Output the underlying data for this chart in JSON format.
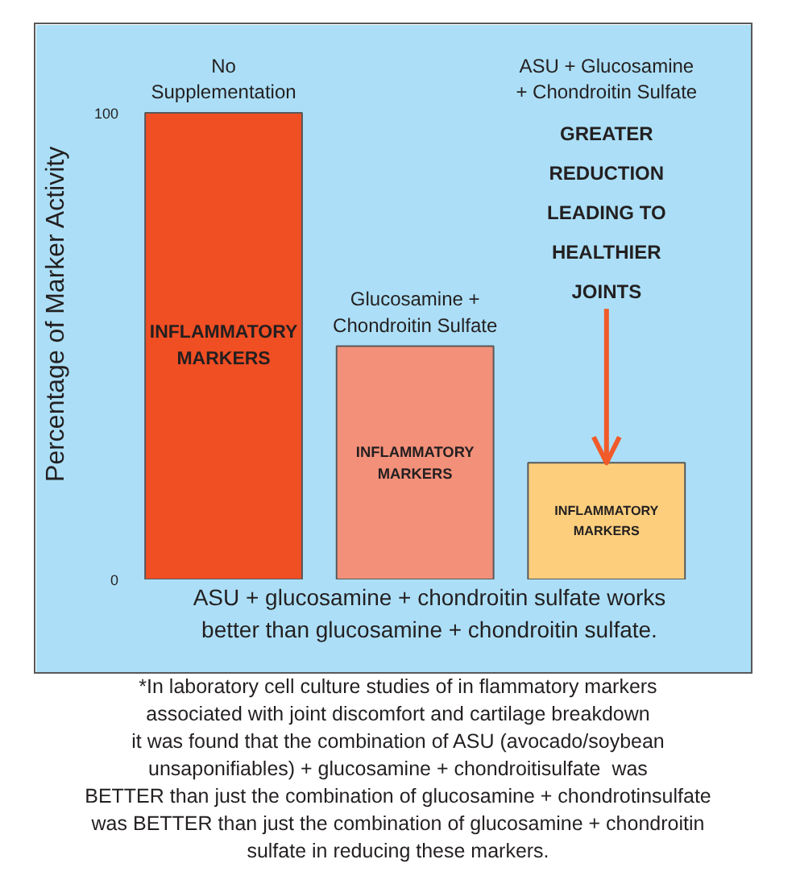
{
  "chart_data": {
    "type": "bar",
    "categories": [
      "No\nSupplementation",
      "Glucosamine +\nChondroitin Sulfate",
      "ASU + Glucosamine\n+ Chondroitin Sulfate"
    ],
    "values": [
      100,
      50,
      25
    ],
    "colors": [
      "#f04e23",
      "#f3907a",
      "#fdcf7d"
    ],
    "ylabel": "Percentage of Marker Activity",
    "ylim": [
      0,
      114
    ],
    "yticks": [
      0,
      100
    ],
    "annotations": [
      "INFLAMMATORY\nMARKERS",
      "INFLAMMATORY\nMARKERS",
      "INFLAMMATORY\nMARKERS",
      {
        "text": "GREATER\nREDUCTION\nLEADING TO\nHEALTHIER\nJOINTS",
        "x": "ASU + Glucosamine\n+ Chondroitin Sulfate",
        "y": 25
      },
      "ASU + glucosamine + chondroitin sulfate works\nbetter than glucosamine + chondroitin sulfate.",
      "*In laboratory cell culture studies of in flammatory markers\nassociated with joint discomfort and cartilage breakdown\nit was found that the combination of ASU (avocado/soybean\nunsaponifiables) + glucosamine + chondroitisulfate  was\nBETTER than just the combination of glucosamine + chondrotinsulfate\nwas BETTER than just the combination of glucosamine + chondroitin\nsulfate in reducing these markers."
    ]
  }
}
